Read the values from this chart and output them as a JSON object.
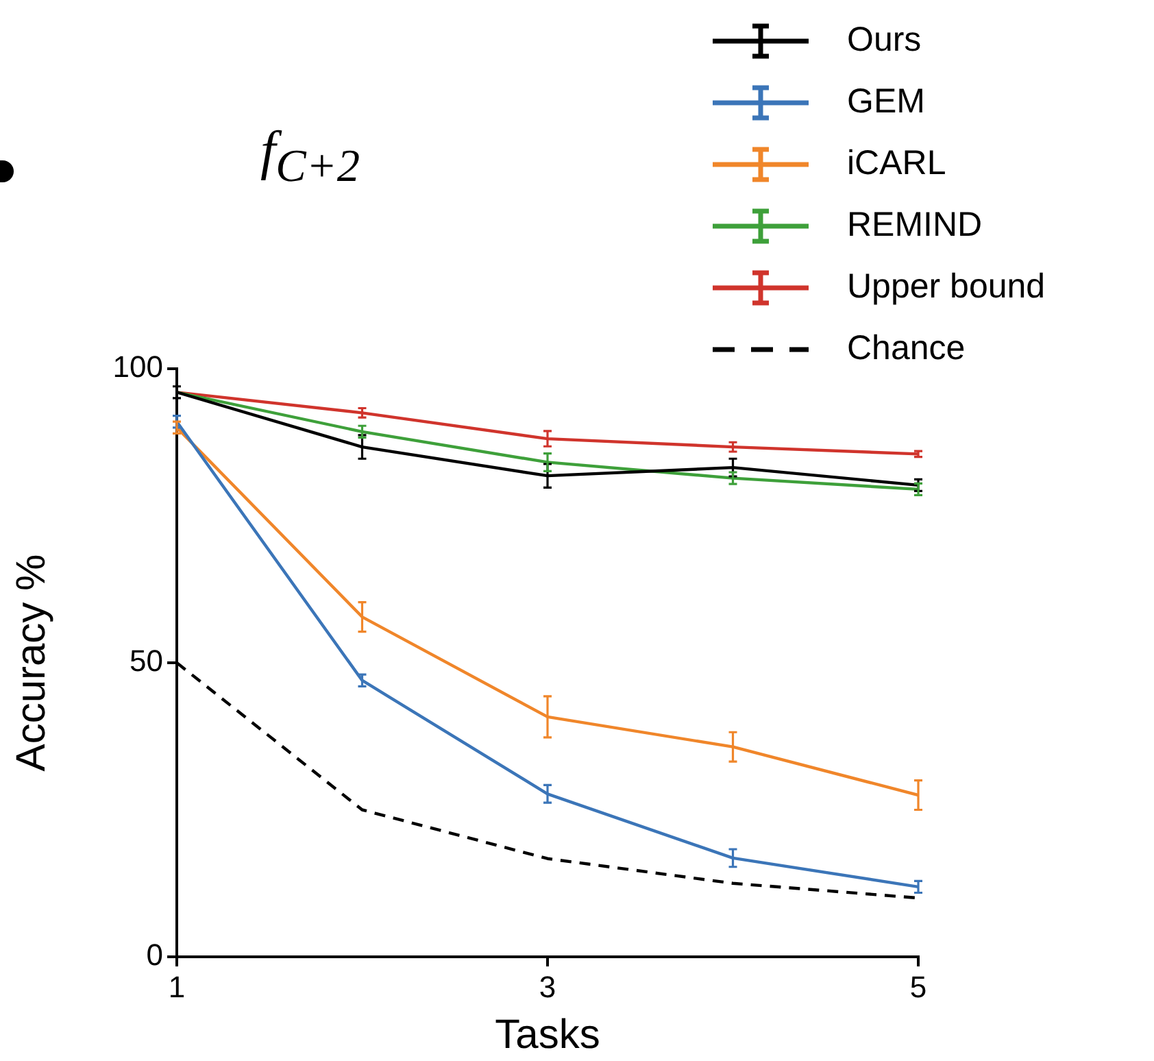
{
  "chart_data": {
    "type": "line",
    "title": "f$_{C+2}$",
    "xlabel": "Tasks",
    "ylabel": "Accuracy %",
    "x": [
      1,
      2,
      3,
      4,
      5
    ],
    "xlim": [
      1,
      5
    ],
    "xticks": [
      1,
      3,
      5
    ],
    "ylim": [
      0,
      100
    ],
    "yticks": [
      0,
      50,
      100
    ],
    "legend": "top right",
    "series": [
      {
        "name": "Ours",
        "color": "#000000",
        "values": [
          96,
          86.7,
          81.8,
          83.2,
          80.2
        ],
        "errors": [
          1,
          2,
          2,
          1.5,
          1
        ]
      },
      {
        "name": "GEM",
        "color": "#3b75b8",
        "values": [
          91,
          47,
          27.7,
          16.8,
          11.9
        ],
        "errors": [
          1,
          1,
          1.5,
          1.5,
          1
        ]
      },
      {
        "name": "iCARL",
        "color": "#f0862a",
        "values": [
          90,
          57.8,
          40.8,
          35.7,
          27.5
        ],
        "errors": [
          1,
          2.5,
          3.5,
          2.5,
          2.5
        ]
      },
      {
        "name": "REMIND",
        "color": "#3ea03a",
        "values": [
          96,
          89.3,
          84.1,
          81.4,
          79.5
        ],
        "errors": [
          null,
          1,
          1.5,
          1,
          1
        ]
      },
      {
        "name": "Upper bound",
        "color": "#d0342c",
        "values": [
          96,
          92.5,
          88.1,
          86.7,
          85.5
        ],
        "errors": [
          null,
          0.8,
          1.3,
          0.8,
          0.5
        ]
      },
      {
        "name": "Chance",
        "color": "#000000",
        "values": [
          50,
          25,
          16.7,
          12.5,
          10
        ],
        "line_style": "dashed"
      }
    ]
  }
}
